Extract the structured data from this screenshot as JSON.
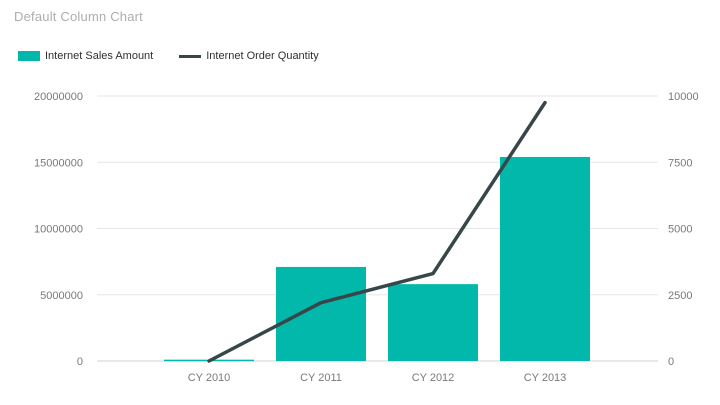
{
  "title": "Default Column Chart",
  "colors": {
    "bar_series": "#01B8AA",
    "line_series": "#374649",
    "gridline": "#e6e6e6",
    "zero_line": "#d2d2d2",
    "axis_tick_text": "#77797c",
    "title_text": "#abaeb0",
    "legend_text": "#2d3032",
    "background": "#ffffff"
  },
  "legend": {
    "items": [
      {
        "label": "Internet Sales Amount",
        "swatch": "bar",
        "color": "#01B8AA"
      },
      {
        "label": "Internet Order Quantity",
        "swatch": "line",
        "color": "#374649"
      }
    ]
  },
  "chart_data": {
    "type": "combo-column-line",
    "title": "Default Column Chart",
    "categories": [
      "CY 2010",
      "CY 2011",
      "CY 2012",
      "CY 2013"
    ],
    "series": [
      {
        "name": "Internet Sales Amount",
        "type": "bar",
        "axis": "left",
        "color": "#01B8AA",
        "values": [
          100000,
          7100000,
          5800000,
          15400000
        ]
      },
      {
        "name": "Internet Order Quantity",
        "type": "line",
        "axis": "right",
        "color": "#374649",
        "values": [
          0,
          2200,
          3300,
          9750
        ]
      }
    ],
    "left_axis": {
      "min": 0,
      "max": 20000000,
      "ticks": [
        0,
        5000000,
        10000000,
        15000000,
        20000000
      ]
    },
    "right_axis": {
      "min": 0,
      "max": 10000,
      "ticks": [
        0,
        2500,
        5000,
        7500,
        10000
      ]
    },
    "grid": true,
    "legend_position": "top-left"
  }
}
